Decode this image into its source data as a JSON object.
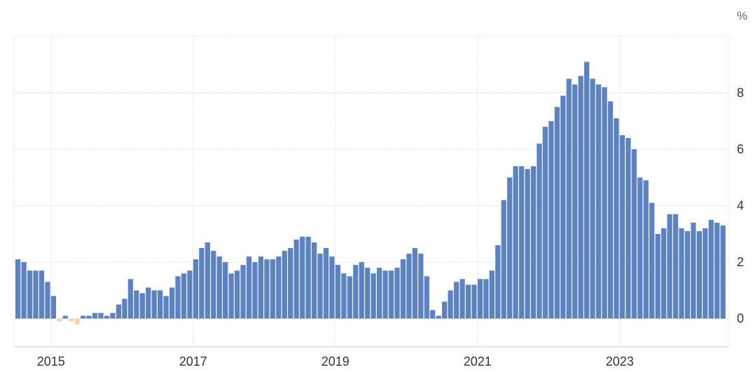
{
  "chart_data": {
    "type": "bar",
    "unit": "%",
    "x_start": "2014-07",
    "frequency": "monthly",
    "values": [
      2.1,
      2.0,
      1.7,
      1.7,
      1.7,
      1.3,
      0.8,
      -0.1,
      0.1,
      -0.1,
      -0.2,
      0.1,
      0.1,
      0.2,
      0.2,
      0.1,
      0.2,
      0.5,
      0.7,
      1.4,
      1.0,
      0.9,
      1.1,
      1.0,
      1.0,
      0.8,
      1.1,
      1.5,
      1.6,
      1.7,
      2.1,
      2.5,
      2.7,
      2.4,
      2.2,
      2.0,
      1.6,
      1.7,
      1.9,
      2.2,
      2.0,
      2.2,
      2.1,
      2.1,
      2.2,
      2.4,
      2.5,
      2.8,
      2.9,
      2.9,
      2.7,
      2.3,
      2.5,
      2.2,
      1.9,
      1.6,
      1.5,
      1.9,
      2.0,
      1.8,
      1.6,
      1.8,
      1.7,
      1.7,
      1.8,
      2.1,
      2.3,
      2.5,
      2.3,
      1.5,
      0.3,
      0.1,
      0.6,
      1.0,
      1.3,
      1.4,
      1.2,
      1.2,
      1.4,
      1.4,
      1.7,
      2.6,
      4.2,
      5.0,
      5.4,
      5.4,
      5.3,
      5.4,
      6.2,
      6.8,
      7.0,
      7.5,
      7.9,
      8.5,
      8.3,
      8.6,
      9.1,
      8.5,
      8.3,
      8.2,
      7.7,
      7.1,
      6.5,
      6.4,
      6.0,
      5.0,
      4.9,
      4.1,
      3.0,
      3.2,
      3.7,
      3.7,
      3.2,
      3.1,
      3.4,
      3.1,
      3.2,
      3.5,
      3.4,
      3.3
    ],
    "x_ticks": [
      "2015",
      "2017",
      "2019",
      "2021",
      "2023"
    ],
    "y_ticks": [
      "0",
      "2",
      "4",
      "6",
      "8"
    ],
    "ylim": [
      -1,
      10
    ],
    "grid": true,
    "colors": {
      "positive": "#5b82c2",
      "negative": "#f3d6a6",
      "grid": "#dddddd",
      "axis": "#cccccc"
    }
  }
}
